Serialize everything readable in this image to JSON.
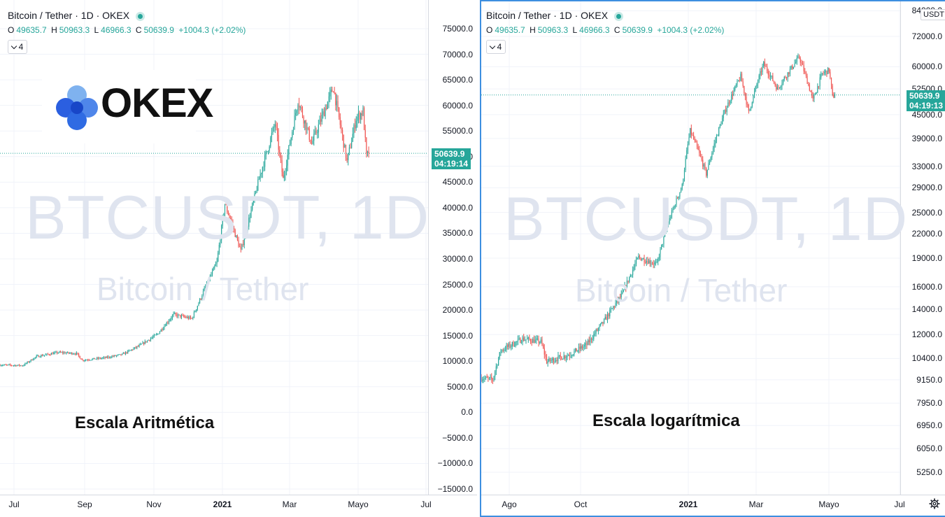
{
  "colors": {
    "up": "#26a69a",
    "down": "#ef5350",
    "accent": "#2962ff",
    "watermark": "#dfe4ef",
    "border": "#3d8fe0"
  },
  "header": {
    "symbol": "Bitcoin / Tether · 1D · OKEX",
    "ohlc": {
      "o_label": "O",
      "o": "49635.7",
      "h_label": "H",
      "h": "50963.3",
      "l_label": "L",
      "l": "46966.3",
      "c_label": "C",
      "c": "50639.9",
      "change": "+1004.3 (+2.02%)"
    },
    "indicators_count": "4"
  },
  "watermark": {
    "ticker": "BTCUSDT, 1D",
    "pair": "Bitcoin / Tether"
  },
  "logo": {
    "text": "OKEX",
    "icon": "okex-clover-icon"
  },
  "left_panel": {
    "scale_label": "Escala Aritmética",
    "price_tag": {
      "price": "50639.9",
      "countdown": "04:19:14"
    },
    "y_ticks": [
      "75000.0",
      "70000.0",
      "65000.0",
      "60000.0",
      "55000.0",
      "50000.0",
      "45000.0",
      "40000.0",
      "35000.0",
      "30000.0",
      "25000.0",
      "20000.0",
      "15000.0",
      "10000.0",
      "5000.0",
      "0.0",
      "−5000.0",
      "−10000.0",
      "−15000.0"
    ],
    "x_ticks": [
      {
        "label": "Jul",
        "bold": false
      },
      {
        "label": "Sep",
        "bold": false
      },
      {
        "label": "Nov",
        "bold": false
      },
      {
        "label": "2021",
        "bold": true
      },
      {
        "label": "Mar",
        "bold": false
      },
      {
        "label": "Mayo",
        "bold": false
      },
      {
        "label": "Jul",
        "bold": false
      }
    ]
  },
  "right_panel": {
    "scale_label": "Escala logarítmica",
    "unit": "USDT",
    "price_tag": {
      "price": "50639.9",
      "countdown": "04:19:13"
    },
    "y_ticks": [
      "84000.0",
      "72000.0",
      "60000.0",
      "52500.0",
      "45000.0",
      "39000.0",
      "33000.0",
      "29000.0",
      "25000.0",
      "22000.0",
      "19000.0",
      "16000.0",
      "14000.0",
      "12000.0",
      "10400.0",
      "9150.0",
      "7950.0",
      "6950.0",
      "6050.0",
      "5250.0"
    ],
    "x_ticks": [
      {
        "label": "Ago",
        "bold": false
      },
      {
        "label": "Oct",
        "bold": false
      },
      {
        "label": "2021",
        "bold": true
      },
      {
        "label": "Mar",
        "bold": false
      },
      {
        "label": "Mayo",
        "bold": false
      },
      {
        "label": "Jul",
        "bold": false
      }
    ],
    "settings_icon": "gear-icon"
  },
  "chart_data": [
    {
      "type": "candlestick",
      "scale": "linear",
      "title": "Bitcoin / Tether · 1D · OKEX",
      "ylim": [
        -15000,
        75000
      ],
      "y_ticks": [
        75000,
        70000,
        65000,
        60000,
        55000,
        50000,
        45000,
        40000,
        35000,
        30000,
        25000,
        20000,
        15000,
        10000,
        5000,
        0,
        -5000,
        -10000,
        -15000
      ],
      "x_ticks": [
        "Jul",
        "Sep",
        "Nov",
        "2021",
        "Mar",
        "Mayo",
        "Jul"
      ],
      "x_range": [
        "2020-06-25",
        "2021-07-05"
      ],
      "last_close": 50639.9,
      "series": [
        {
          "name": "BTCUSDT",
          "close_path": [
            [
              "2020-06-25",
              9250
            ],
            [
              "2020-07-15",
              9150
            ],
            [
              "2020-07-27",
              10900
            ],
            [
              "2020-08-15",
              11700
            ],
            [
              "2020-08-31",
              11500
            ],
            [
              "2020-09-05",
              10200
            ],
            [
              "2020-09-25",
              10650
            ],
            [
              "2020-10-10",
              11300
            ],
            [
              "2020-10-25",
              13000
            ],
            [
              "2020-11-10",
              15300
            ],
            [
              "2020-11-24",
              19100
            ],
            [
              "2020-12-10",
              18300
            ],
            [
              "2020-12-20",
              23500
            ],
            [
              "2021-01-01",
              29300
            ],
            [
              "2021-01-08",
              40800
            ],
            [
              "2021-01-22",
              31500
            ],
            [
              "2021-02-08",
              46500
            ],
            [
              "2021-02-21",
              56500
            ],
            [
              "2021-02-28",
              45500
            ],
            [
              "2021-03-13",
              61000
            ],
            [
              "2021-03-25",
              52500
            ],
            [
              "2021-04-13",
              63500
            ],
            [
              "2021-04-25",
              49000
            ],
            [
              "2021-05-03",
              57500
            ],
            [
              "2021-05-09",
              58800
            ],
            [
              "2021-05-12",
              50000
            ],
            [
              "2021-05-14",
              50639.9
            ]
          ]
        }
      ]
    },
    {
      "type": "candlestick",
      "scale": "log",
      "title": "Bitcoin / Tether · 1D · OKEX",
      "ylim": [
        5000,
        86000
      ],
      "y_ticks": [
        84000,
        72000,
        60000,
        52500,
        45000,
        39000,
        33000,
        29000,
        25000,
        22000,
        19000,
        16000,
        14000,
        12000,
        10400,
        9150,
        7950,
        6950,
        6050,
        5250
      ],
      "x_ticks": [
        "Ago",
        "Oct",
        "2021",
        "Mar",
        "Mayo",
        "Jul"
      ],
      "x_range": [
        "2020-07-10",
        "2021-07-10"
      ],
      "last_close": 50639.9,
      "series": [
        {
          "name": "BTCUSDT",
          "close_path": [
            [
              "2020-07-10",
              9250
            ],
            [
              "2020-07-20",
              9150
            ],
            [
              "2020-07-27",
              10900
            ],
            [
              "2020-08-15",
              11700
            ],
            [
              "2020-08-31",
              11500
            ],
            [
              "2020-09-05",
              10200
            ],
            [
              "2020-09-25",
              10650
            ],
            [
              "2020-10-10",
              11300
            ],
            [
              "2020-10-25",
              13000
            ],
            [
              "2020-11-10",
              15300
            ],
            [
              "2020-11-24",
              19100
            ],
            [
              "2020-12-10",
              18300
            ],
            [
              "2020-12-20",
              23500
            ],
            [
              "2021-01-01",
              29300
            ],
            [
              "2021-01-08",
              40800
            ],
            [
              "2021-01-22",
              31500
            ],
            [
              "2021-02-08",
              46500
            ],
            [
              "2021-02-21",
              56500
            ],
            [
              "2021-02-28",
              45500
            ],
            [
              "2021-03-13",
              61000
            ],
            [
              "2021-03-25",
              52500
            ],
            [
              "2021-04-13",
              63500
            ],
            [
              "2021-04-25",
              49000
            ],
            [
              "2021-05-03",
              57500
            ],
            [
              "2021-05-09",
              58800
            ],
            [
              "2021-05-12",
              50000
            ],
            [
              "2021-05-14",
              50639.9
            ]
          ]
        }
      ]
    }
  ]
}
